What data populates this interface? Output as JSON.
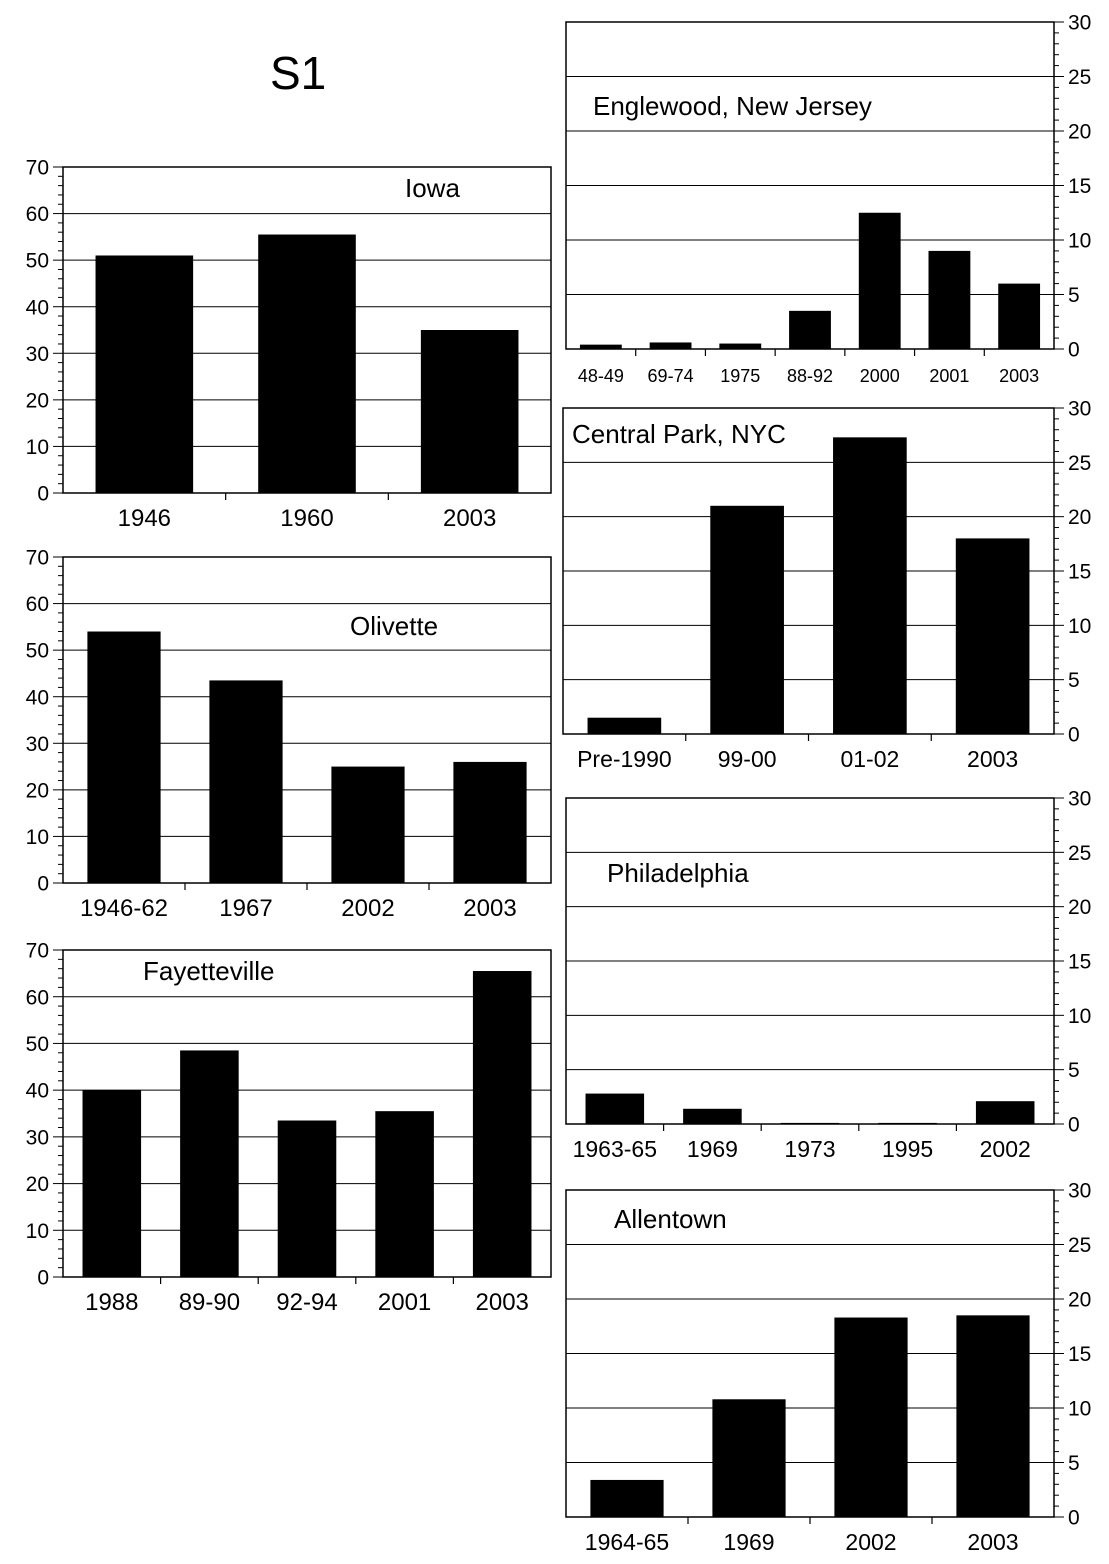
{
  "page": {
    "title": "S1"
  },
  "chart_data": [
    {
      "type": "bar",
      "title": "Iowa",
      "categories": [
        "1946",
        "1960",
        "2003"
      ],
      "values": [
        51,
        55.5,
        35
      ],
      "ylim": [
        0,
        70
      ],
      "yticks": [
        0,
        10,
        20,
        30,
        40,
        50,
        60,
        70
      ],
      "y_axis_side": "left",
      "grid": true
    },
    {
      "type": "bar",
      "title": "Olivette",
      "categories": [
        "1946-62",
        "1967",
        "2002",
        "2003"
      ],
      "values": [
        54,
        43.5,
        25,
        26
      ],
      "ylim": [
        0,
        70
      ],
      "yticks": [
        0,
        10,
        20,
        30,
        40,
        50,
        60,
        70
      ],
      "y_axis_side": "left",
      "grid": true
    },
    {
      "type": "bar",
      "title": "Fayetteville",
      "categories": [
        "1988",
        "89-90",
        "92-94",
        "2001",
        "2003"
      ],
      "values": [
        40,
        48.5,
        33.5,
        35.5,
        65.5
      ],
      "ylim": [
        0,
        70
      ],
      "yticks": [
        0,
        10,
        20,
        30,
        40,
        50,
        60,
        70
      ],
      "y_axis_side": "left",
      "grid": true
    },
    {
      "type": "bar",
      "title": "Englewood, New Jersey",
      "categories": [
        "48-49",
        "69-74",
        "1975",
        "88-92",
        "2000",
        "2001",
        "2003"
      ],
      "values": [
        0.4,
        0.6,
        0.5,
        3.5,
        12.5,
        9,
        6
      ],
      "ylim": [
        0,
        30
      ],
      "yticks": [
        0,
        5,
        10,
        15,
        20,
        25,
        30
      ],
      "y_axis_side": "right",
      "grid": true
    },
    {
      "type": "bar",
      "title": "Central Park, NYC",
      "categories": [
        "Pre-1990",
        "99-00",
        "01-02",
        "2003"
      ],
      "values": [
        1.5,
        21,
        27.3,
        18
      ],
      "ylim": [
        0,
        30
      ],
      "yticks": [
        0,
        5,
        10,
        15,
        20,
        25,
        30
      ],
      "y_axis_side": "right",
      "grid": true
    },
    {
      "type": "bar",
      "title": "Philadelphia",
      "categories": [
        "1963-65",
        "1969",
        "1973",
        "1995",
        "2002"
      ],
      "values": [
        2.8,
        1.4,
        0.1,
        0.1,
        2.1
      ],
      "ylim": [
        0,
        30
      ],
      "yticks": [
        0,
        5,
        10,
        15,
        20,
        25,
        30
      ],
      "y_axis_side": "right",
      "grid": true
    },
    {
      "type": "bar",
      "title": "Allentown",
      "categories": [
        "1964-65",
        "1969",
        "2002",
        "2003"
      ],
      "values": [
        3.4,
        10.8,
        18.3,
        18.5
      ],
      "ylim": [
        0,
        30
      ],
      "yticks": [
        0,
        5,
        10,
        15,
        20,
        25,
        30
      ],
      "y_axis_side": "right",
      "grid": true
    }
  ]
}
